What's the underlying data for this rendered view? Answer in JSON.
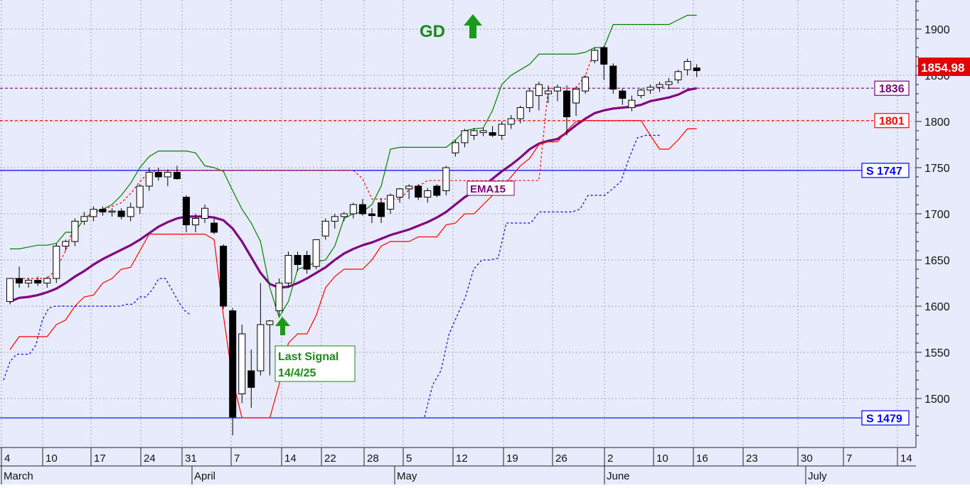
{
  "chart_data": {
    "type": "candlestick",
    "title": "",
    "xlabel": "",
    "ylabel": "",
    "ylim": [
      1455,
      1955
    ],
    "grid": true,
    "price_label": "1854.98",
    "x_ticks": [
      "4",
      "10",
      "17",
      "24",
      "31",
      "7",
      "14",
      "22",
      "28",
      "5",
      "12",
      "19",
      "26",
      "2",
      "10",
      "16",
      "23",
      "30",
      "7",
      "14"
    ],
    "month_labels": [
      "March",
      "April",
      "May",
      "June",
      "July"
    ],
    "y_ticks": [
      "1500",
      "1550",
      "1600",
      "1650",
      "1700",
      "1750",
      "1800",
      "1850",
      "1900"
    ],
    "hlines": [
      {
        "label": "1836",
        "value": 1836,
        "color": "#800080",
        "style": "dashed"
      },
      {
        "label": "1801",
        "value": 1801,
        "color": "#ff0000",
        "style": "dashed"
      },
      {
        "label": "S 1747",
        "value": 1747,
        "color": "#0000ff",
        "style": "solid"
      },
      {
        "label": "S 1479",
        "value": 1479,
        "color": "#0000ff",
        "style": "solid"
      }
    ],
    "annotations": {
      "signal_title": "GD",
      "ema_label": "EMA15",
      "last_signal_line1": "Last Signal",
      "last_signal_line2": "14/4/25"
    },
    "candles": [
      [
        1605,
        1630,
        1602,
        1630
      ],
      [
        1630,
        1643,
        1620,
        1625
      ],
      [
        1625,
        1630,
        1620,
        1628
      ],
      [
        1628,
        1632,
        1622,
        1625
      ],
      [
        1625,
        1632,
        1620,
        1630
      ],
      [
        1630,
        1668,
        1625,
        1665
      ],
      [
        1665,
        1672,
        1660,
        1670
      ],
      [
        1670,
        1695,
        1665,
        1692
      ],
      [
        1692,
        1702,
        1688,
        1697
      ],
      [
        1697,
        1708,
        1692,
        1705
      ],
      [
        1705,
        1708,
        1698,
        1702
      ],
      [
        1702,
        1706,
        1697,
        1703
      ],
      [
        1703,
        1706,
        1694,
        1697
      ],
      [
        1697,
        1712,
        1692,
        1707
      ],
      [
        1707,
        1732,
        1700,
        1730
      ],
      [
        1730,
        1750,
        1725,
        1745
      ],
      [
        1745,
        1750,
        1736,
        1740
      ],
      [
        1740,
        1748,
        1730,
        1745
      ],
      [
        1745,
        1752,
        1737,
        1738
      ],
      [
        1718,
        1720,
        1680,
        1688
      ],
      [
        1688,
        1700,
        1680,
        1695
      ],
      [
        1695,
        1710,
        1690,
        1706
      ],
      [
        1690,
        1695,
        1678,
        1680
      ],
      [
        1665,
        1667,
        1597,
        1600
      ],
      [
        1595,
        1598,
        1460,
        1480
      ],
      [
        1505,
        1580,
        1495,
        1570
      ],
      [
        1530,
        1553,
        1490,
        1512
      ],
      [
        1530,
        1625,
        1525,
        1580
      ],
      [
        1580,
        1585,
        1525,
        1584
      ],
      [
        1595,
        1630,
        1590,
        1625
      ],
      [
        1625,
        1659,
        1620,
        1655
      ],
      [
        1655,
        1659,
        1638,
        1645
      ],
      [
        1655,
        1660,
        1635,
        1640
      ],
      [
        1643,
        1672,
        1640,
        1672
      ],
      [
        1676,
        1695,
        1672,
        1692
      ],
      [
        1692,
        1700,
        1684,
        1697
      ],
      [
        1697,
        1702,
        1692,
        1700
      ],
      [
        1700,
        1712,
        1695,
        1710
      ],
      [
        1710,
        1716,
        1698,
        1700
      ],
      [
        1700,
        1706,
        1690,
        1698
      ],
      [
        1712,
        1717,
        1690,
        1697
      ],
      [
        1705,
        1722,
        1700,
        1720
      ],
      [
        1718,
        1728,
        1712,
        1727
      ],
      [
        1727,
        1732,
        1716,
        1730
      ],
      [
        1730,
        1732,
        1715,
        1718
      ],
      [
        1718,
        1728,
        1712,
        1725
      ],
      [
        1730,
        1732,
        1718,
        1720
      ],
      [
        1725,
        1752,
        1720,
        1750
      ],
      [
        1766,
        1780,
        1762,
        1777
      ],
      [
        1777,
        1792,
        1772,
        1790
      ],
      [
        1785,
        1793,
        1780,
        1790
      ],
      [
        1788,
        1793,
        1784,
        1790
      ],
      [
        1788,
        1795,
        1783,
        1785
      ],
      [
        1785,
        1800,
        1780,
        1797
      ],
      [
        1797,
        1807,
        1792,
        1803
      ],
      [
        1803,
        1817,
        1798,
        1815
      ],
      [
        1815,
        1836,
        1810,
        1833
      ],
      [
        1828,
        1843,
        1812,
        1840
      ],
      [
        1830,
        1839,
        1820,
        1833
      ],
      [
        1833,
        1840,
        1822,
        1837
      ],
      [
        1833,
        1839,
        1785,
        1805
      ],
      [
        1820,
        1838,
        1806,
        1835
      ],
      [
        1833,
        1850,
        1830,
        1848
      ],
      [
        1866,
        1880,
        1863,
        1877
      ],
      [
        1880,
        1882,
        1845,
        1862
      ],
      [
        1860,
        1863,
        1830,
        1835
      ],
      [
        1833,
        1836,
        1818,
        1825
      ],
      [
        1815,
        1828,
        1811,
        1823
      ],
      [
        1828,
        1836,
        1825,
        1834
      ],
      [
        1834,
        1840,
        1830,
        1837
      ],
      [
        1837,
        1843,
        1832,
        1840
      ],
      [
        1840,
        1847,
        1835,
        1843
      ],
      [
        1845,
        1856,
        1841,
        1854
      ],
      [
        1856,
        1868,
        1850,
        1865
      ],
      [
        1858,
        1862,
        1848,
        1855
      ]
    ],
    "series": [
      {
        "name": "EMA15",
        "color": "#800080",
        "values": [
          1605,
          1609,
          1610,
          1612,
          1615,
          1619,
          1625,
          1632,
          1638,
          1645,
          1651,
          1656,
          1661,
          1666,
          1672,
          1679,
          1686,
          1691,
          1695,
          1697,
          1697,
          1697,
          1696,
          1693,
          1684,
          1670,
          1653,
          1636,
          1624,
          1620,
          1621,
          1625,
          1630,
          1636,
          1642,
          1650,
          1657,
          1662,
          1666,
          1669,
          1673,
          1677,
          1680,
          1683,
          1687,
          1691,
          1696,
          1702,
          1710,
          1718,
          1724,
          1730,
          1738,
          1746,
          1753,
          1761,
          1770,
          1776,
          1779,
          1781,
          1788,
          1796,
          1803,
          1809,
          1812,
          1814,
          1815,
          1816,
          1818,
          1822,
          1824,
          1826,
          1829,
          1834,
          1836
        ]
      },
      {
        "name": "upper-band",
        "color": "#008000",
        "values": [
          1662,
          1662,
          1664,
          1666,
          1666,
          1668,
          1680,
          1680,
          1695,
          1702,
          1705,
          1710,
          1720,
          1733,
          1750,
          1762,
          1768,
          1768,
          1768,
          1768,
          1766,
          1752,
          1750,
          1746,
          1725,
          1705,
          1690,
          1670,
          1620,
          1588,
          1605,
          1640,
          1643,
          1648,
          1650,
          1665,
          1695,
          1700,
          1702,
          1710,
          1730,
          1770,
          1772,
          1772,
          1772,
          1772,
          1772,
          1772,
          1780,
          1790,
          1792,
          1793,
          1812,
          1840,
          1850,
          1856,
          1862,
          1873,
          1873,
          1873,
          1873,
          1873,
          1875,
          1880,
          1880,
          1905,
          1905,
          1905,
          1905,
          1905,
          1905,
          1905,
          1910,
          1915,
          1915
        ]
      },
      {
        "name": "lower-band",
        "color": "#ff0000",
        "values": [
          1553,
          1567,
          1567,
          1567,
          1567,
          1580,
          1585,
          1600,
          1610,
          1612,
          1625,
          1630,
          1640,
          1642,
          1660,
          1678,
          1678,
          1678,
          1678,
          1678,
          1678,
          1678,
          1672,
          1590,
          1520,
          1479,
          1479,
          1479,
          1479,
          1515,
          1560,
          1570,
          1570,
          1590,
          1620,
          1632,
          1640,
          1640,
          1640,
          1650,
          1665,
          1670,
          1670,
          1670,
          1675,
          1675,
          1675,
          1688,
          1690,
          1700,
          1700,
          1710,
          1720,
          1727,
          1740,
          1752,
          1760,
          1775,
          1778,
          1778,
          1790,
          1800,
          1801,
          1801,
          1801,
          1801,
          1801,
          1801,
          1801,
          1785,
          1770,
          1770,
          1780,
          1792,
          1792
        ]
      },
      {
        "name": "blue-trail",
        "color": "#0000ff",
        "values": [
          1520,
          1540,
          1548,
          1548,
          1548,
          1558,
          1585,
          1598,
          1600,
          1600,
          1600,
          1600,
          1600,
          1600,
          1600,
          1600,
          1600,
          1600,
          1600,
          1602,
          1602,
          1610,
          1610,
          1618,
          1630,
          1630,
          1618,
          1605,
          1595,
          1590
        ]
      },
      {
        "name": "blue-trail-2",
        "color": "#0000ff",
        "values": [
          1480,
          1515,
          1530,
          1570,
          1590,
          1610,
          1640,
          1650,
          1650,
          1652,
          1690,
          1690,
          1690,
          1690,
          1702,
          1702,
          1702,
          1702,
          1702,
          1705,
          1720,
          1720,
          1720,
          1727,
          1735,
          1760,
          1782,
          1785,
          1785,
          1785
        ]
      },
      {
        "name": "red-step",
        "color": "#ff0000",
        "values": [
          1630,
          1630,
          1630,
          1630,
          1630,
          1640,
          1660,
          1690,
          1694,
          1700,
          1705,
          1708,
          1712,
          1722,
          1735,
          1745,
          1747,
          1747,
          1747,
          1747,
          1747,
          1747,
          1747,
          1747,
          1747,
          1747,
          1747,
          1747,
          1747,
          1747,
          1747,
          1747,
          1747,
          1747,
          1747,
          1747,
          1747,
          1747,
          1738,
          1716,
          1716,
          1716,
          1716,
          1726,
          1730,
          1736,
          1736,
          1736,
          1736,
          1736,
          1736,
          1736,
          1736,
          1736,
          1736,
          1736,
          1736,
          1736,
          1836,
          1836,
          1836,
          1836,
          1850,
          1877
        ]
      },
      {
        "name": "purple-trail",
        "color": "#800080",
        "values": [
          1836,
          1836
        ]
      }
    ]
  }
}
